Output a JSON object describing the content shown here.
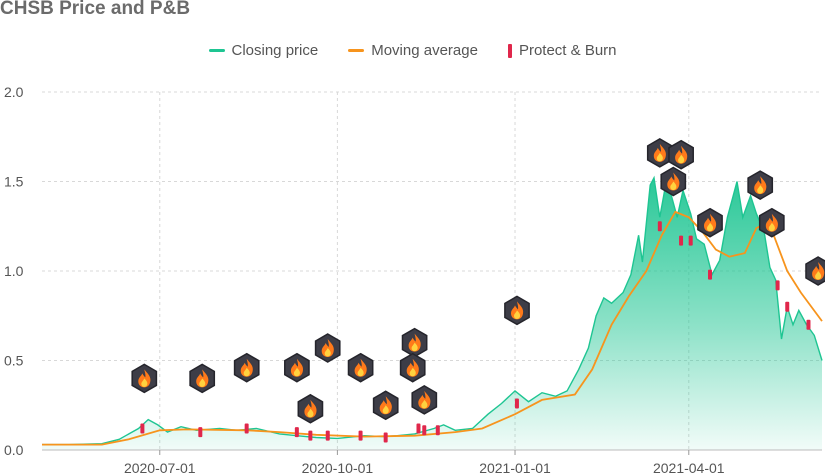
{
  "chart_data": {
    "type": "area",
    "title": "CHSB Price and P&B",
    "xlabel": "",
    "ylabel": "",
    "x_range": [
      "2020-05-01",
      "2021-06-09"
    ],
    "ylim": [
      0,
      2.0
    ],
    "yticks": [
      "0.0",
      "0.5",
      "1.0",
      "1.5",
      "2.0"
    ],
    "xticks": [
      {
        "date": "2020-07-01",
        "label": "2020-07-01"
      },
      {
        "date": "2020-10-01",
        "label": "2020-10-01"
      },
      {
        "date": "2021-01-01",
        "label": "2021-01-01"
      },
      {
        "date": "2021-04-01",
        "label": "2021-04-01"
      }
    ],
    "grid": "horizontal dashed",
    "legend_position": "top-center",
    "series": [
      {
        "name": "Closing price",
        "color": "#1ec592",
        "points": [
          [
            "2020-05-01",
            0.03
          ],
          [
            "2020-05-15",
            0.03
          ],
          [
            "2020-06-01",
            0.035
          ],
          [
            "2020-06-10",
            0.06
          ],
          [
            "2020-06-20",
            0.12
          ],
          [
            "2020-06-25",
            0.17
          ],
          [
            "2020-06-30",
            0.14
          ],
          [
            "2020-07-05",
            0.1
          ],
          [
            "2020-07-12",
            0.13
          ],
          [
            "2020-07-20",
            0.11
          ],
          [
            "2020-08-01",
            0.12
          ],
          [
            "2020-08-10",
            0.11
          ],
          [
            "2020-08-20",
            0.12
          ],
          [
            "2020-09-01",
            0.09
          ],
          [
            "2020-09-10",
            0.08
          ],
          [
            "2020-09-20",
            0.07
          ],
          [
            "2020-10-01",
            0.065
          ],
          [
            "2020-10-15",
            0.08
          ],
          [
            "2020-10-25",
            0.075
          ],
          [
            "2020-11-01",
            0.08
          ],
          [
            "2020-11-10",
            0.09
          ],
          [
            "2020-11-20",
            0.12
          ],
          [
            "2020-11-25",
            0.14
          ],
          [
            "2020-12-01",
            0.11
          ],
          [
            "2020-12-10",
            0.12
          ],
          [
            "2020-12-18",
            0.2
          ],
          [
            "2020-12-25",
            0.26
          ],
          [
            "2021-01-01",
            0.33
          ],
          [
            "2021-01-08",
            0.27
          ],
          [
            "2021-01-15",
            0.32
          ],
          [
            "2021-01-22",
            0.3
          ],
          [
            "2021-01-28",
            0.33
          ],
          [
            "2021-02-03",
            0.45
          ],
          [
            "2021-02-08",
            0.57
          ],
          [
            "2021-02-12",
            0.75
          ],
          [
            "2021-02-16",
            0.85
          ],
          [
            "2021-02-20",
            0.82
          ],
          [
            "2021-02-26",
            0.88
          ],
          [
            "2021-03-02",
            0.98
          ],
          [
            "2021-03-06",
            1.2
          ],
          [
            "2021-03-08",
            1.05
          ],
          [
            "2021-03-12",
            1.48
          ],
          [
            "2021-03-14",
            1.52
          ],
          [
            "2021-03-17",
            1.3
          ],
          [
            "2021-03-20",
            1.48
          ],
          [
            "2021-03-23",
            1.42
          ],
          [
            "2021-03-26",
            1.3
          ],
          [
            "2021-03-29",
            1.45
          ],
          [
            "2021-04-02",
            1.32
          ],
          [
            "2021-04-05",
            1.18
          ],
          [
            "2021-04-09",
            1.15
          ],
          [
            "2021-04-13",
            0.98
          ],
          [
            "2021-04-17",
            1.06
          ],
          [
            "2021-04-21",
            1.3
          ],
          [
            "2021-04-24",
            1.42
          ],
          [
            "2021-04-26",
            1.5
          ],
          [
            "2021-04-29",
            1.3
          ],
          [
            "2021-05-03",
            1.42
          ],
          [
            "2021-05-06",
            1.32
          ],
          [
            "2021-05-10",
            1.22
          ],
          [
            "2021-05-13",
            1.02
          ],
          [
            "2021-05-16",
            0.95
          ],
          [
            "2021-05-19",
            0.62
          ],
          [
            "2021-05-22",
            0.8
          ],
          [
            "2021-05-25",
            0.7
          ],
          [
            "2021-05-28",
            0.78
          ],
          [
            "2021-06-01",
            0.7
          ],
          [
            "2021-06-05",
            0.64
          ],
          [
            "2021-06-09",
            0.5
          ]
        ]
      },
      {
        "name": "Moving average",
        "color": "#f7941d",
        "points": [
          [
            "2020-05-01",
            0.03
          ],
          [
            "2020-06-01",
            0.03
          ],
          [
            "2020-06-15",
            0.06
          ],
          [
            "2020-07-01",
            0.11
          ],
          [
            "2020-07-15",
            0.115
          ],
          [
            "2020-08-15",
            0.11
          ],
          [
            "2020-09-01",
            0.1
          ],
          [
            "2020-09-20",
            0.085
          ],
          [
            "2020-10-15",
            0.075
          ],
          [
            "2020-11-10",
            0.08
          ],
          [
            "2020-12-01",
            0.1
          ],
          [
            "2020-12-15",
            0.12
          ],
          [
            "2021-01-01",
            0.2
          ],
          [
            "2021-01-15",
            0.28
          ],
          [
            "2021-02-01",
            0.31
          ],
          [
            "2021-02-10",
            0.45
          ],
          [
            "2021-02-20",
            0.7
          ],
          [
            "2021-03-01",
            0.86
          ],
          [
            "2021-03-10",
            1.0
          ],
          [
            "2021-03-18",
            1.2
          ],
          [
            "2021-03-25",
            1.33
          ],
          [
            "2021-04-01",
            1.3
          ],
          [
            "2021-04-08",
            1.22
          ],
          [
            "2021-04-15",
            1.12
          ],
          [
            "2021-04-22",
            1.08
          ],
          [
            "2021-04-30",
            1.1
          ],
          [
            "2021-05-06",
            1.24
          ],
          [
            "2021-05-10",
            1.26
          ],
          [
            "2021-05-15",
            1.2
          ],
          [
            "2021-05-22",
            1.0
          ],
          [
            "2021-05-29",
            0.88
          ],
          [
            "2021-06-09",
            0.72
          ]
        ]
      }
    ],
    "protect_and_burn": {
      "name": "Protect & Burn",
      "color": "#e0274b",
      "events": [
        [
          "2020-06-22",
          0.12
        ],
        [
          "2020-07-22",
          0.1
        ],
        [
          "2020-08-15",
          0.12
        ],
        [
          "2020-09-10",
          0.1
        ],
        [
          "2020-09-17",
          0.08
        ],
        [
          "2020-09-26",
          0.08
        ],
        [
          "2020-10-13",
          0.08
        ],
        [
          "2020-10-26",
          0.07
        ],
        [
          "2020-11-12",
          0.12
        ],
        [
          "2020-11-15",
          0.11
        ],
        [
          "2020-11-22",
          0.11
        ],
        [
          "2021-01-02",
          0.26
        ],
        [
          "2021-03-17",
          1.25
        ],
        [
          "2021-03-28",
          1.17
        ],
        [
          "2021-04-02",
          1.17
        ],
        [
          "2021-04-12",
          0.98
        ],
        [
          "2021-05-17",
          0.92
        ],
        [
          "2021-05-22",
          0.8
        ],
        [
          "2021-06-02",
          0.7
        ]
      ],
      "icons": [
        [
          "2020-06-23",
          0.4
        ],
        [
          "2020-07-23",
          0.4
        ],
        [
          "2020-08-15",
          0.46
        ],
        [
          "2020-09-10",
          0.46
        ],
        [
          "2020-09-17",
          0.23
        ],
        [
          "2020-09-26",
          0.57
        ],
        [
          "2020-10-13",
          0.46
        ],
        [
          "2020-10-26",
          0.25
        ],
        [
          "2020-11-10",
          0.6
        ],
        [
          "2020-11-09",
          0.46
        ],
        [
          "2020-11-15",
          0.28
        ],
        [
          "2021-01-02",
          0.78
        ],
        [
          "2021-03-17",
          1.66
        ],
        [
          "2021-03-28",
          1.65
        ],
        [
          "2021-03-24",
          1.5
        ],
        [
          "2021-04-12",
          1.27
        ],
        [
          "2021-05-08",
          1.48
        ],
        [
          "2021-05-14",
          1.27
        ],
        [
          "2021-06-07",
          1.0
        ]
      ]
    }
  },
  "legend": {
    "closing": "Closing price",
    "ma": "Moving average",
    "pb": "Protect & Burn"
  },
  "colors": {
    "area_top": "#1ec592",
    "grid": "#d8d8d8",
    "hex_dark": "#3d3d47",
    "flame_orange": "#ff7a1a",
    "flame_yellow": "#ffd23f"
  }
}
